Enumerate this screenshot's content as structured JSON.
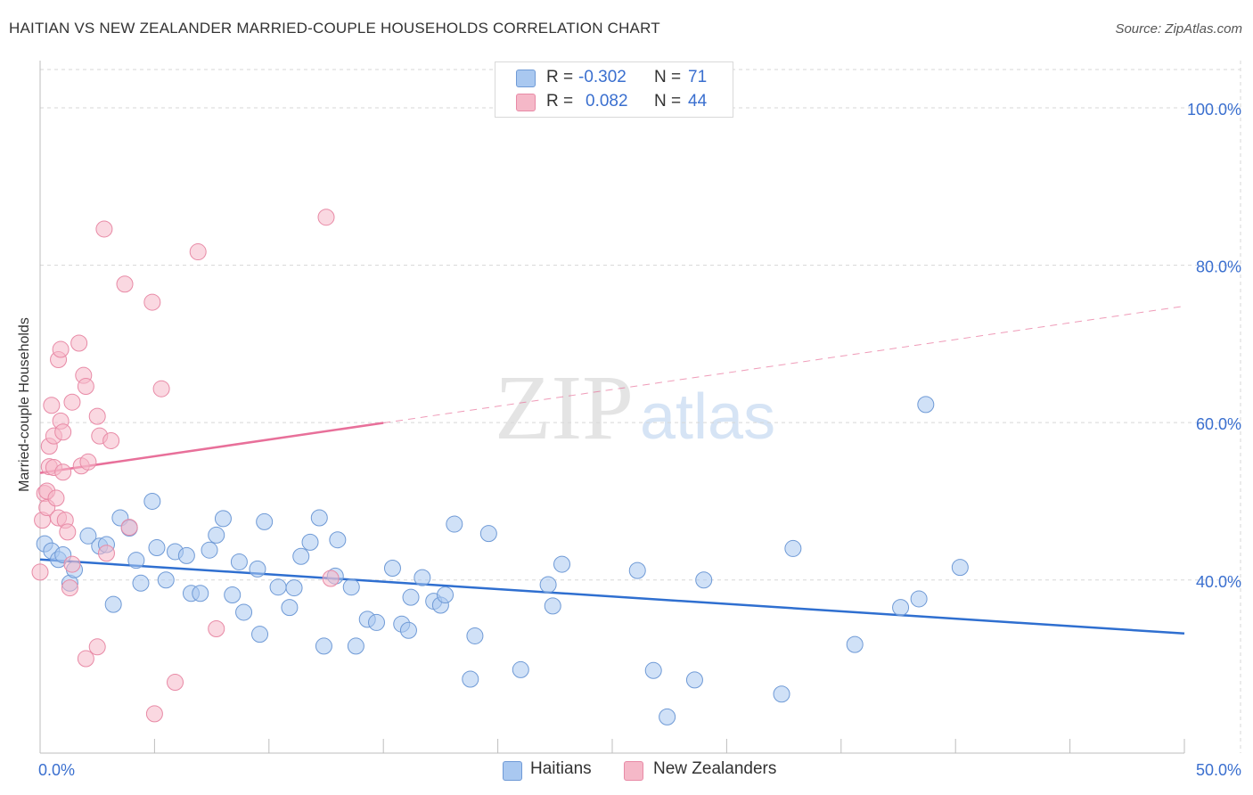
{
  "header": {
    "title": "HAITIAN VS NEW ZEALANDER MARRIED-COUPLE HOUSEHOLDS CORRELATION CHART",
    "source": "Source: ZipAtlas.com"
  },
  "watermark": {
    "zip": "ZIP",
    "atlas": "atlas"
  },
  "legend": {
    "r_label": "R =",
    "n_label": "N =",
    "rows": [
      {
        "name": "Haitians",
        "r": "-0.302",
        "n": "71",
        "color": "#a9c8f0"
      },
      {
        "name": "New Zealanders",
        "r": "0.082",
        "n": "44",
        "color": "#f5b8c8"
      }
    ]
  },
  "chart_data": {
    "type": "scatter",
    "title": "HAITIAN VS NEW ZEALANDER MARRIED-COUPLE HOUSEHOLDS CORRELATION CHART",
    "xlabel": "",
    "ylabel": "Married-couple Households",
    "xlim": [
      0,
      50
    ],
    "ylim": [
      18,
      106
    ],
    "x_tick_labels": [
      "0.0%",
      "50.0%"
    ],
    "y_ticks": [
      40,
      60,
      80,
      100
    ],
    "y_tick_labels": [
      "40.0%",
      "60.0%",
      "80.0%",
      "100.0%"
    ],
    "series": [
      {
        "name": "Haitians",
        "color": "#a9c8f0",
        "stroke": "#6f9ad6",
        "trend": {
          "x0": 0,
          "y0": 42.6,
          "x1": 50,
          "y1": 33.2,
          "color": "#2f6fd0",
          "solid_to": 50
        },
        "points": [
          [
            0.2,
            44.6
          ],
          [
            0.5,
            43.7
          ],
          [
            0.8,
            42.6
          ],
          [
            1.0,
            43.2
          ],
          [
            1.3,
            39.6
          ],
          [
            1.5,
            41.3
          ],
          [
            2.1,
            45.6
          ],
          [
            2.6,
            44.3
          ],
          [
            2.9,
            44.5
          ],
          [
            3.2,
            36.9
          ],
          [
            3.5,
            47.9
          ],
          [
            3.9,
            46.6
          ],
          [
            4.2,
            42.5
          ],
          [
            4.4,
            39.6
          ],
          [
            4.9,
            50.0
          ],
          [
            5.1,
            44.1
          ],
          [
            5.5,
            40.0
          ],
          [
            5.9,
            43.6
          ],
          [
            6.4,
            43.1
          ],
          [
            6.6,
            38.3
          ],
          [
            7.0,
            38.3
          ],
          [
            7.4,
            43.8
          ],
          [
            7.7,
            45.7
          ],
          [
            8.0,
            47.8
          ],
          [
            8.4,
            38.1
          ],
          [
            8.7,
            42.3
          ],
          [
            8.9,
            35.9
          ],
          [
            9.5,
            41.4
          ],
          [
            9.6,
            33.1
          ],
          [
            9.8,
            47.4
          ],
          [
            10.4,
            39.1
          ],
          [
            10.9,
            36.5
          ],
          [
            11.1,
            39.0
          ],
          [
            11.4,
            43.0
          ],
          [
            11.8,
            44.8
          ],
          [
            12.2,
            47.9
          ],
          [
            12.4,
            31.6
          ],
          [
            12.9,
            40.5
          ],
          [
            13.0,
            45.1
          ],
          [
            13.6,
            39.1
          ],
          [
            13.8,
            31.6
          ],
          [
            14.3,
            35.0
          ],
          [
            14.7,
            34.6
          ],
          [
            15.4,
            41.5
          ],
          [
            15.8,
            34.4
          ],
          [
            16.1,
            33.6
          ],
          [
            16.2,
            37.8
          ],
          [
            16.7,
            40.3
          ],
          [
            17.2,
            37.3
          ],
          [
            17.5,
            36.8
          ],
          [
            17.7,
            38.1
          ],
          [
            18.1,
            47.1
          ],
          [
            18.8,
            27.4
          ],
          [
            19.0,
            32.9
          ],
          [
            19.6,
            45.9
          ],
          [
            21.0,
            28.6
          ],
          [
            22.2,
            39.4
          ],
          [
            22.4,
            36.7
          ],
          [
            22.8,
            42.0
          ],
          [
            26.1,
            41.2
          ],
          [
            26.8,
            28.5
          ],
          [
            27.4,
            22.6
          ],
          [
            28.6,
            27.3
          ],
          [
            29.0,
            40.0
          ],
          [
            32.4,
            25.5
          ],
          [
            32.9,
            44.0
          ],
          [
            35.6,
            31.8
          ],
          [
            37.6,
            36.5
          ],
          [
            38.4,
            37.6
          ],
          [
            38.7,
            62.3
          ],
          [
            40.2,
            41.6
          ]
        ]
      },
      {
        "name": "New Zealanders",
        "color": "#f5b8c8",
        "stroke": "#e88aa6",
        "trend": {
          "x0": 0,
          "y0": 53.6,
          "x1": 50,
          "y1": 74.8,
          "color": "#e8709a",
          "solid_to": 15
        },
        "points": [
          [
            0.0,
            41.0
          ],
          [
            0.1,
            47.6
          ],
          [
            0.2,
            51.0
          ],
          [
            0.3,
            49.2
          ],
          [
            0.3,
            51.3
          ],
          [
            0.4,
            57.0
          ],
          [
            0.4,
            54.4
          ],
          [
            0.5,
            62.2
          ],
          [
            0.6,
            58.3
          ],
          [
            0.6,
            54.3
          ],
          [
            0.7,
            50.4
          ],
          [
            0.8,
            68.0
          ],
          [
            0.8,
            47.9
          ],
          [
            0.9,
            69.3
          ],
          [
            0.9,
            60.2
          ],
          [
            1.0,
            58.8
          ],
          [
            1.0,
            53.7
          ],
          [
            1.1,
            47.6
          ],
          [
            1.2,
            46.1
          ],
          [
            1.3,
            39.0
          ],
          [
            1.4,
            62.6
          ],
          [
            1.4,
            42.0
          ],
          [
            1.7,
            70.1
          ],
          [
            1.8,
            54.5
          ],
          [
            1.9,
            66.0
          ],
          [
            2.0,
            64.6
          ],
          [
            2.0,
            30.0
          ],
          [
            2.1,
            55.0
          ],
          [
            2.5,
            60.8
          ],
          [
            2.5,
            31.5
          ],
          [
            2.6,
            58.3
          ],
          [
            2.8,
            84.6
          ],
          [
            2.9,
            43.4
          ],
          [
            3.1,
            57.7
          ],
          [
            3.7,
            77.6
          ],
          [
            3.9,
            46.7
          ],
          [
            4.9,
            75.3
          ],
          [
            5.0,
            23.0
          ],
          [
            5.3,
            64.3
          ],
          [
            5.9,
            27.0
          ],
          [
            6.9,
            81.7
          ],
          [
            7.7,
            33.8
          ],
          [
            12.5,
            86.1
          ],
          [
            12.7,
            40.2
          ]
        ]
      }
    ]
  }
}
